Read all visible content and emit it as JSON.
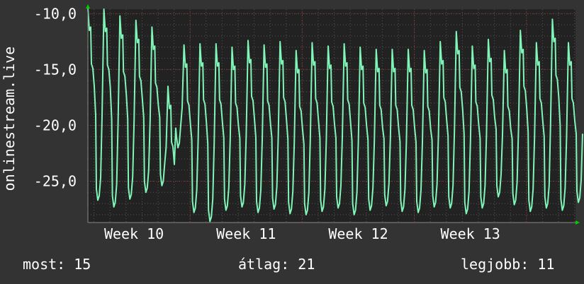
{
  "chart_data": {
    "type": "line",
    "ylabel": "onlinestream.live",
    "ylim": [
      -28.7,
      -9.6
    ],
    "yticks": [
      "-10,0",
      "-15,0",
      "-20,0",
      "-25,0"
    ],
    "ytick_values": [
      -10,
      -15,
      -20,
      -25
    ],
    "xticks": [
      "Week 10",
      "Week 11",
      "Week 12",
      "Week 13"
    ],
    "grid": true,
    "color": "#80f5b8",
    "series": [
      {
        "name": "onlinestream.live",
        "daily_peak": [
          -11.5,
          -11.6,
          -12.2,
          -12.6,
          -13.2,
          -18.5,
          -14.8,
          -14.7,
          -14.7,
          -15.0,
          -14.4,
          -14.8,
          -14.5,
          -15.3,
          -14.6,
          -14.9,
          -14.7,
          -15.0,
          -15.2,
          -15.2,
          -15.2,
          -15.3,
          -14.5,
          -13.6,
          -14.9,
          -14.3,
          -15.3,
          -13.5,
          -14.6,
          -12.5,
          -14.6
        ],
        "daily_trough": [
          -26.7,
          -27.3,
          -26.6,
          -26.0,
          -25.4,
          -22.0,
          -27.8,
          -28.6,
          -27.6,
          -27.3,
          -27.8,
          -27.5,
          -27.9,
          -28.0,
          -27.7,
          -27.4,
          -28.0,
          -27.6,
          -27.2,
          -27.7,
          -27.8,
          -27.3,
          -27.4,
          -27.9,
          -27.4,
          -26.4,
          -27.1,
          -27.7,
          -27.4,
          -27.6,
          -26.9
        ]
      }
    ]
  },
  "footer": {
    "current": "most: 15",
    "average": "átlag: 21",
    "best": "legjobb: 11"
  }
}
